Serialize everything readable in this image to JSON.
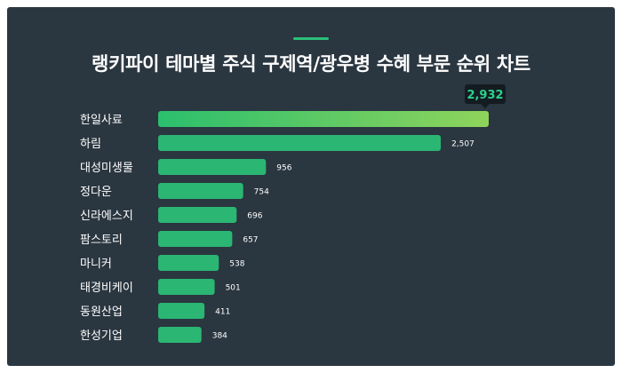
{
  "colors": {
    "background": "#2a3640",
    "bar": "#2bb673",
    "bar_top_start": "#2bbf6e",
    "bar_top_end": "#8fd45c",
    "accent": "#2bbf7a",
    "tooltip_bg": "#141c22",
    "tooltip_text": "#2bd48a"
  },
  "chart_data": {
    "type": "bar",
    "orientation": "horizontal",
    "title": "랭키파이 테마별 주식 구제역/광우병 수혜 부문 순위 차트",
    "categories": [
      "한일사료",
      "하림",
      "대성미생물",
      "정다운",
      "신라에스지",
      "팜스토리",
      "마니커",
      "태경비케이",
      "동원산업",
      "한성기업"
    ],
    "values": [
      2932,
      2507,
      956,
      754,
      696,
      657,
      538,
      501,
      411,
      384
    ],
    "value_labels": [
      "2,932",
      "2,507",
      "956",
      "754",
      "696",
      "657",
      "538",
      "501",
      "411",
      "384"
    ],
    "xlim": [
      0,
      2932
    ],
    "highlight_index": 0,
    "grid": false,
    "legend": "none"
  }
}
